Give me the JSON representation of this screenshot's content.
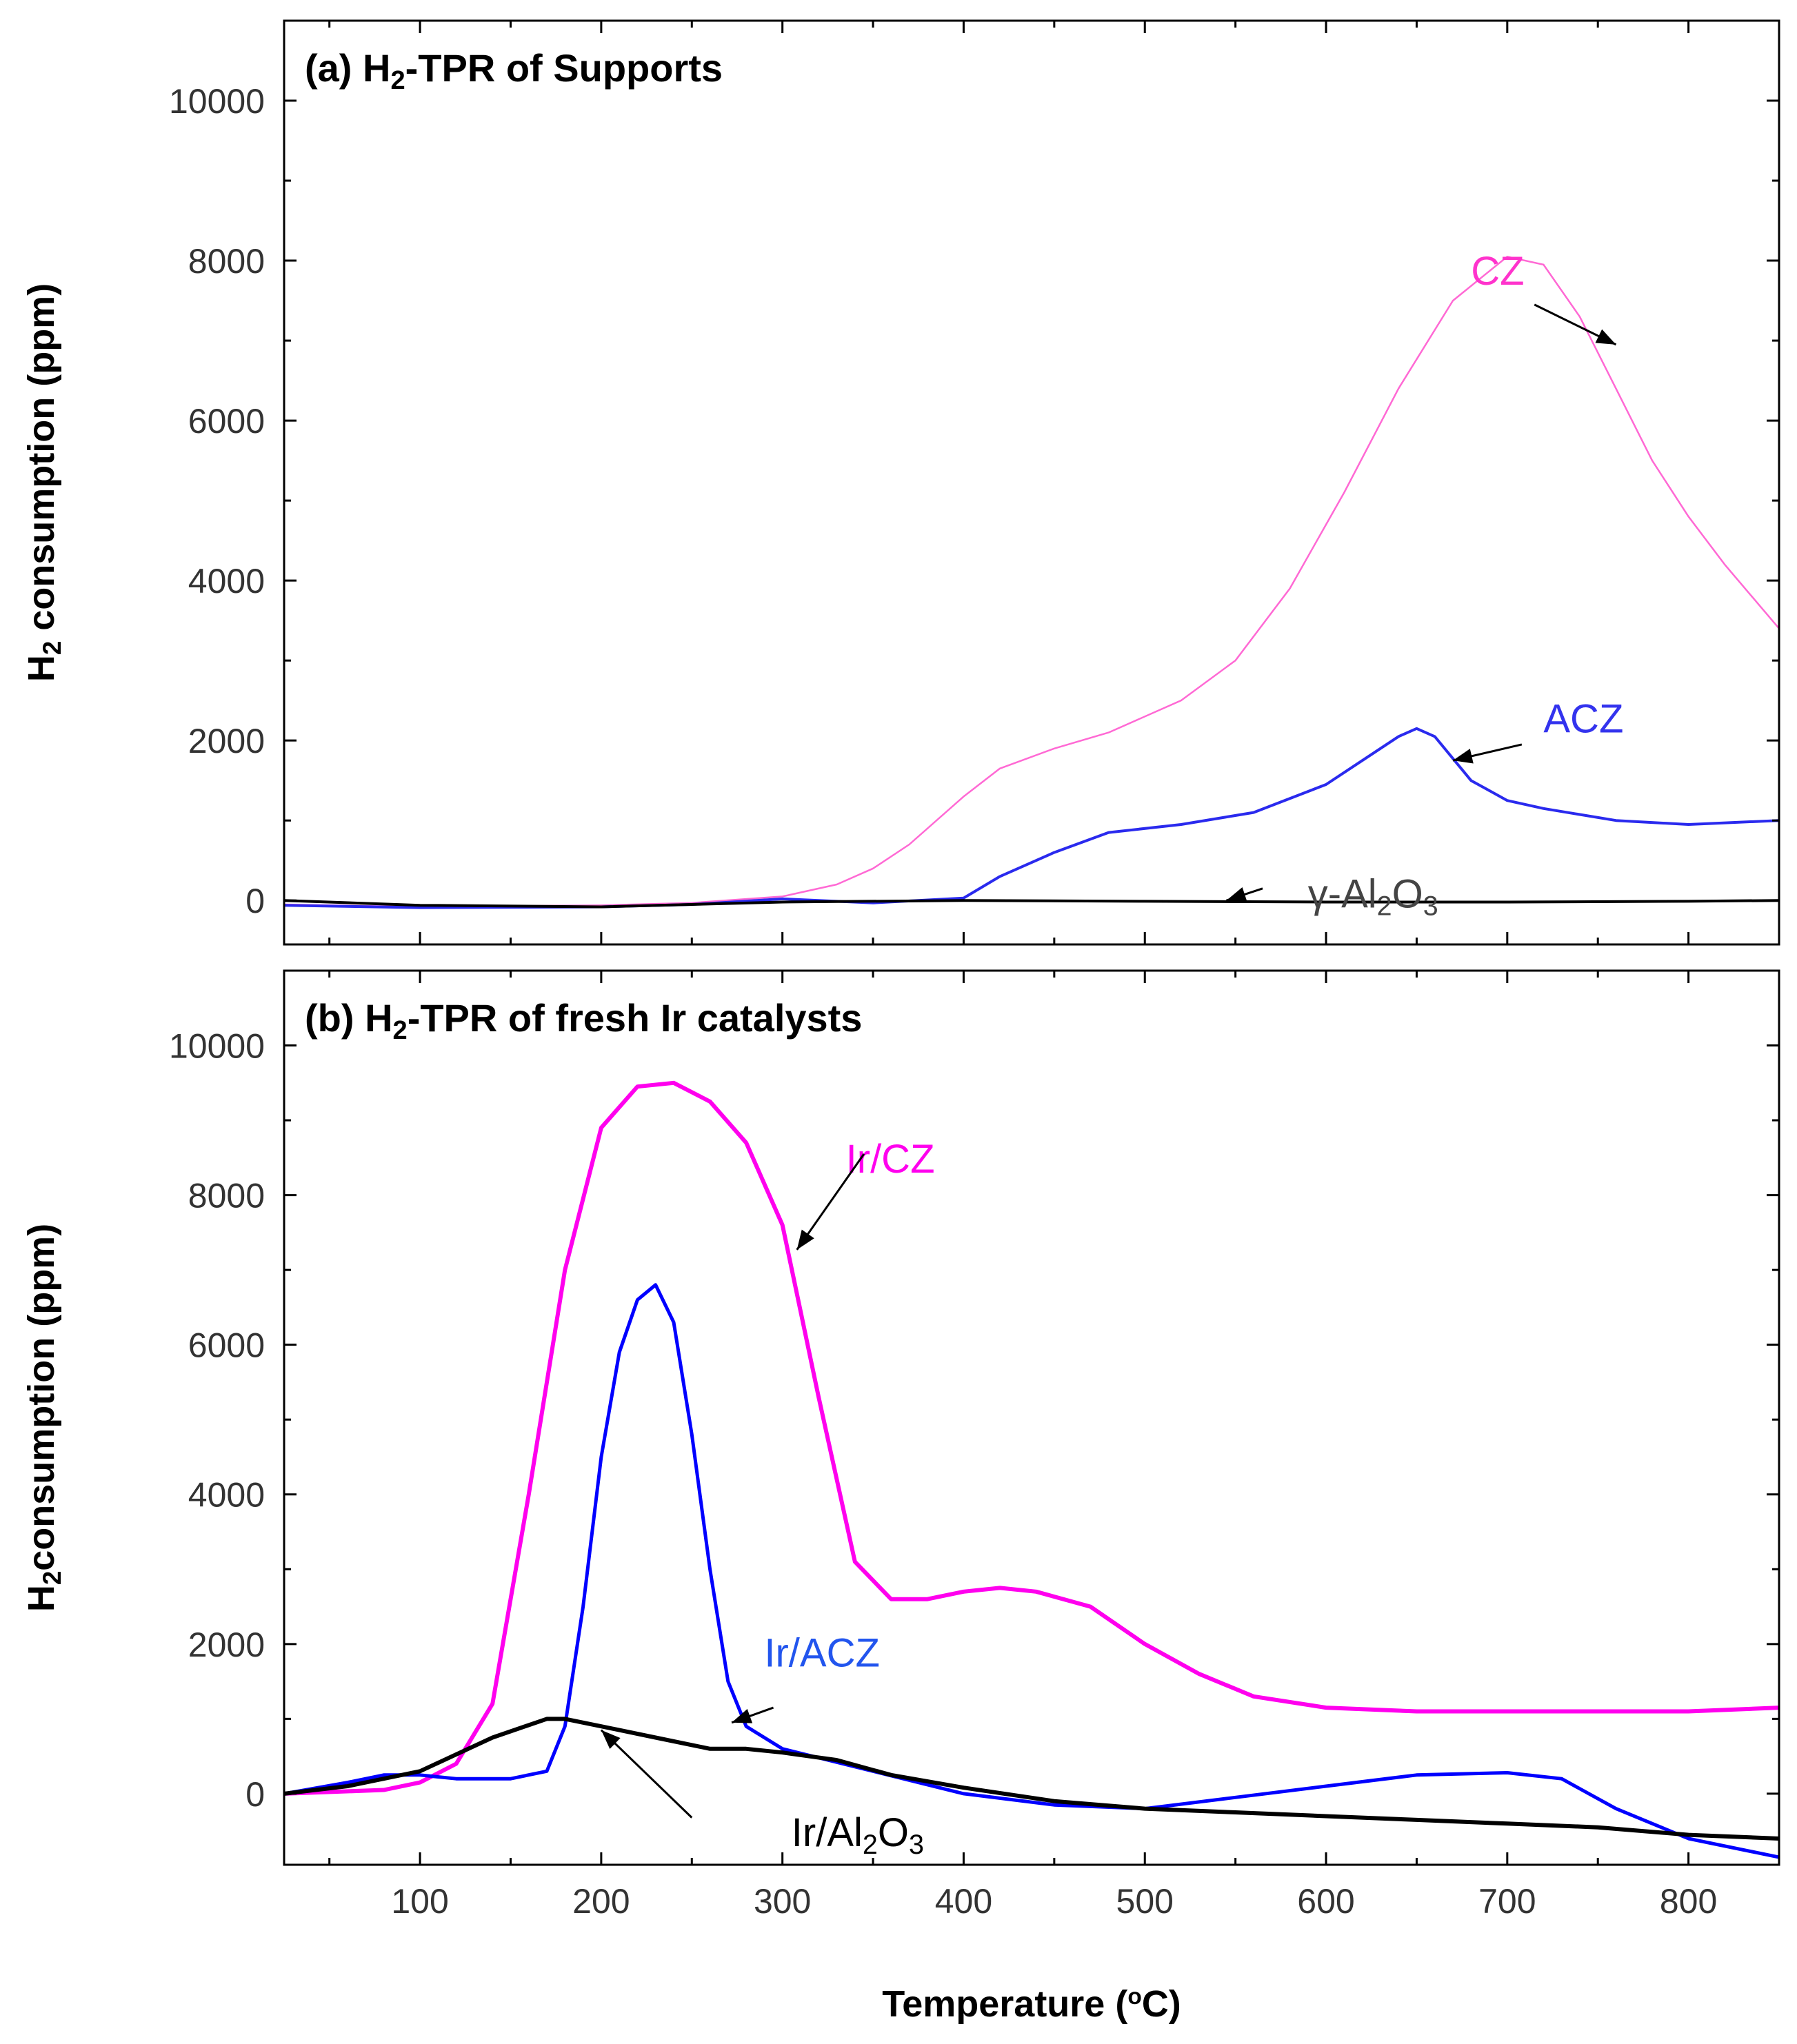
{
  "chart_data": [
    {
      "type": "line",
      "panel": "a",
      "title": "(a) H2-TPR of Supports",
      "title_parts": [
        "(a) H",
        "2",
        "-TPR of Supports"
      ],
      "xlabel": "",
      "ylabel": "H2 consumption (ppm)",
      "ylabel_parts": [
        "H",
        "2",
        " consumption (ppm)"
      ],
      "xlim": [
        25,
        850
      ],
      "ylim": [
        -550,
        11000
      ],
      "yticks": [
        0,
        2000,
        4000,
        6000,
        8000,
        10000
      ],
      "ytick_labels": [
        "0",
        "2000",
        "4000",
        "6000",
        "8000",
        "10000"
      ],
      "xticks": [
        100,
        200,
        300,
        400,
        500,
        600,
        700,
        800
      ],
      "show_xtick_labels": false,
      "grid": false,
      "series": [
        {
          "name": "CZ",
          "color": "#ff69d4",
          "width": 2.5,
          "x": [
            25,
            100,
            200,
            250,
            300,
            330,
            350,
            370,
            400,
            420,
            450,
            480,
            520,
            550,
            580,
            610,
            640,
            670,
            700,
            720,
            740,
            760,
            780,
            800,
            820,
            850
          ],
          "y": [
            -50,
            -80,
            -60,
            -30,
            50,
            200,
            400,
            700,
            1300,
            1650,
            1900,
            2100,
            2500,
            3000,
            3900,
            5100,
            6400,
            7500,
            8050,
            7950,
            7300,
            6400,
            5500,
            4800,
            4200,
            3400
          ]
        },
        {
          "name": "ACZ",
          "color": "#2a2aee",
          "width": 4,
          "x": [
            25,
            100,
            200,
            250,
            300,
            350,
            400,
            420,
            450,
            480,
            520,
            560,
            600,
            620,
            640,
            650,
            660,
            680,
            700,
            720,
            760,
            800,
            850
          ],
          "y": [
            -60,
            -90,
            -80,
            -50,
            20,
            -30,
            30,
            300,
            600,
            850,
            950,
            1100,
            1450,
            1750,
            2050,
            2150,
            2050,
            1500,
            1250,
            1150,
            1000,
            950,
            1000
          ]
        },
        {
          "name": "γ-Al2O3",
          "color": "#000000",
          "width": 4,
          "x": [
            25,
            100,
            200,
            300,
            400,
            500,
            600,
            700,
            800,
            850
          ],
          "y": [
            0,
            -60,
            -80,
            -20,
            0,
            -10,
            -20,
            -20,
            -10,
            0
          ]
        }
      ],
      "annotations": [
        {
          "label": "CZ",
          "color": "#ff33cc",
          "parts": [
            "CZ"
          ],
          "text_x": 680,
          "text_y": 7700,
          "from": [
            715,
            7450
          ],
          "to": [
            760,
            6950
          ]
        },
        {
          "label": "ACZ",
          "color": "#3333ee",
          "parts": [
            "ACZ"
          ],
          "text_x": 720,
          "text_y": 2100,
          "from": [
            708,
            1950
          ],
          "to": [
            670,
            1750
          ]
        },
        {
          "label": "γ-Al2O3",
          "color": "#444444",
          "parts": [
            "γ-Al",
            "2",
            "O",
            "3"
          ],
          "text_x": 590,
          "text_y": -90,
          "from": [
            565,
            150
          ],
          "to": [
            545,
            0
          ]
        }
      ]
    },
    {
      "type": "line",
      "panel": "b",
      "title": "(b) H2-TPR of fresh Ir catalysts",
      "title_parts": [
        "(b) H",
        "2",
        "-TPR of fresh Ir catalysts"
      ],
      "xlabel": "Temperature (°C)",
      "xlabel_parts": [
        "Temperature (",
        "o",
        "C)"
      ],
      "ylabel": "H2 consumption (ppm)",
      "ylabel_parts": [
        "H",
        "2",
        "consumption (ppm)"
      ],
      "xlim": [
        25,
        850
      ],
      "ylim": [
        -950,
        11000
      ],
      "yticks": [
        0,
        2000,
        4000,
        6000,
        8000,
        10000
      ],
      "ytick_labels": [
        "0",
        "2000",
        "4000",
        "6000",
        "8000",
        "10000"
      ],
      "xticks": [
        100,
        200,
        300,
        400,
        500,
        600,
        700,
        800
      ],
      "xtick_labels": [
        "100",
        "200",
        "300",
        "400",
        "500",
        "600",
        "700",
        "800"
      ],
      "grid": false,
      "series": [
        {
          "name": "Ir/CZ",
          "color": "#ff00ee",
          "width": 6,
          "x": [
            25,
            80,
            100,
            120,
            140,
            160,
            180,
            200,
            220,
            240,
            260,
            280,
            300,
            320,
            340,
            360,
            380,
            400,
            420,
            440,
            470,
            500,
            530,
            560,
            600,
            650,
            700,
            750,
            800,
            850
          ],
          "y": [
            0,
            50,
            150,
            400,
            1200,
            4000,
            7000,
            8900,
            9450,
            9500,
            9250,
            8700,
            7600,
            5300,
            3100,
            2600,
            2600,
            2700,
            2750,
            2700,
            2500,
            2000,
            1600,
            1300,
            1150,
            1100,
            1100,
            1100,
            1100,
            1150
          ]
        },
        {
          "name": "Ir/ACZ",
          "color": "#0000ff",
          "width": 5,
          "x": [
            25,
            60,
            80,
            100,
            120,
            150,
            170,
            180,
            190,
            200,
            210,
            220,
            230,
            240,
            250,
            260,
            270,
            280,
            300,
            350,
            400,
            450,
            500,
            550,
            600,
            650,
            700,
            730,
            760,
            800,
            850
          ],
          "y": [
            0,
            150,
            250,
            250,
            200,
            200,
            300,
            900,
            2500,
            4500,
            5900,
            6600,
            6800,
            6300,
            4800,
            3000,
            1500,
            900,
            600,
            300,
            0,
            -150,
            -200,
            -50,
            100,
            250,
            280,
            200,
            -200,
            -600,
            -850
          ]
        },
        {
          "name": "Ir/Al2O3",
          "color": "#000000",
          "width": 6,
          "x": [
            25,
            60,
            100,
            140,
            170,
            180,
            200,
            230,
            260,
            280,
            300,
            330,
            360,
            400,
            450,
            500,
            550,
            600,
            650,
            700,
            750,
            800,
            850
          ],
          "y": [
            0,
            100,
            300,
            750,
            1000,
            1000,
            900,
            750,
            600,
            600,
            550,
            450,
            250,
            80,
            -100,
            -200,
            -250,
            -300,
            -350,
            -400,
            -450,
            -550,
            -600
          ]
        }
      ],
      "annotations": [
        {
          "label": "Ir/CZ",
          "color": "#ff00ee",
          "parts": [
            "Ir/CZ"
          ],
          "text_x": 335,
          "text_y": 8300,
          "from": [
            345,
            8550
          ],
          "to": [
            308,
            7270
          ]
        },
        {
          "label": "Ir/ACZ",
          "color": "#2255ee",
          "parts": [
            "Ir/ACZ"
          ],
          "text_x": 290,
          "text_y": 1700,
          "from": [
            295,
            1150
          ],
          "to": [
            272,
            950
          ]
        },
        {
          "label": "Ir/Al2O3",
          "color": "#000000",
          "parts": [
            "Ir/Al",
            "2",
            "O",
            "3"
          ],
          "text_x": 305,
          "text_y": -700,
          "from": [
            250,
            -320
          ],
          "to": [
            200,
            850
          ]
        }
      ]
    }
  ]
}
